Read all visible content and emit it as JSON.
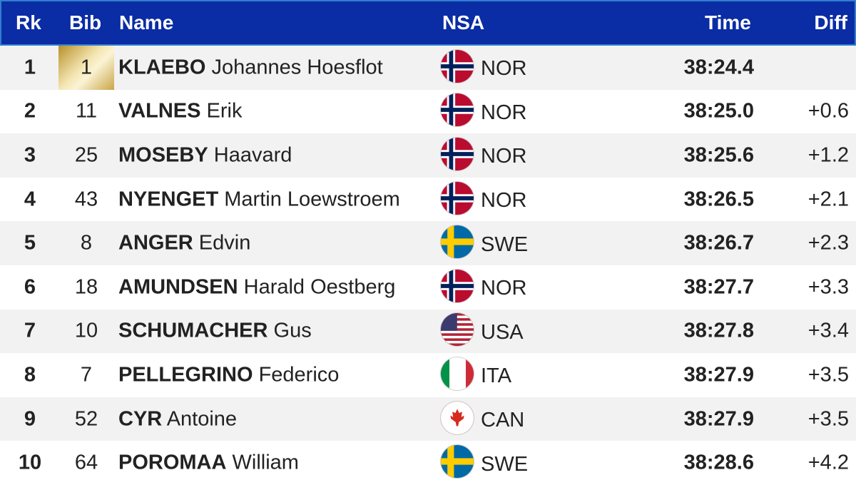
{
  "columns": {
    "rank": "Rk",
    "bib": "Bib",
    "name": "Name",
    "nsa": "NSA",
    "time": "Time",
    "diff": "Diff"
  },
  "rows": [
    {
      "rank": "1",
      "bib": "1",
      "last": "KLAEBO",
      "first": "Johannes Hoesflot",
      "nsa": "NOR",
      "flag": "norway-flag",
      "time": "38:24.4",
      "diff": ""
    },
    {
      "rank": "2",
      "bib": "11",
      "last": "VALNES",
      "first": "Erik",
      "nsa": "NOR",
      "flag": "norway-flag",
      "time": "38:25.0",
      "diff": "+0.6"
    },
    {
      "rank": "3",
      "bib": "25",
      "last": "MOSEBY",
      "first": "Haavard",
      "nsa": "NOR",
      "flag": "norway-flag",
      "time": "38:25.6",
      "diff": "+1.2"
    },
    {
      "rank": "4",
      "bib": "43",
      "last": "NYENGET",
      "first": "Martin Loewstroem",
      "nsa": "NOR",
      "flag": "norway-flag",
      "time": "38:26.5",
      "diff": "+2.1"
    },
    {
      "rank": "5",
      "bib": "8",
      "last": "ANGER",
      "first": "Edvin",
      "nsa": "SWE",
      "flag": "sweden-flag",
      "time": "38:26.7",
      "diff": "+2.3"
    },
    {
      "rank": "6",
      "bib": "18",
      "last": "AMUNDSEN",
      "first": "Harald Oestberg",
      "nsa": "NOR",
      "flag": "norway-flag",
      "time": "38:27.7",
      "diff": "+3.3"
    },
    {
      "rank": "7",
      "bib": "10",
      "last": "SCHUMACHER",
      "first": "Gus",
      "nsa": "USA",
      "flag": "usa-flag",
      "time": "38:27.8",
      "diff": "+3.4"
    },
    {
      "rank": "8",
      "bib": "7",
      "last": "PELLEGRINO",
      "first": "Federico",
      "nsa": "ITA",
      "flag": "italy-flag",
      "time": "38:27.9",
      "diff": "+3.5"
    },
    {
      "rank": "9",
      "bib": "52",
      "last": "CYR",
      "first": "Antoine",
      "nsa": "CAN",
      "flag": "canada-flag",
      "time": "38:27.9",
      "diff": "+3.5"
    },
    {
      "rank": "10",
      "bib": "64",
      "last": "POROMAA",
      "first": "William",
      "nsa": "SWE",
      "flag": "sweden-flag",
      "time": "38:28.6",
      "diff": "+4.2"
    }
  ],
  "colors": {
    "header_bg": "#0a2ca4",
    "header_border": "#2f7fd0",
    "alt_row": "#f2f2f2",
    "leader_bib": "gold"
  }
}
